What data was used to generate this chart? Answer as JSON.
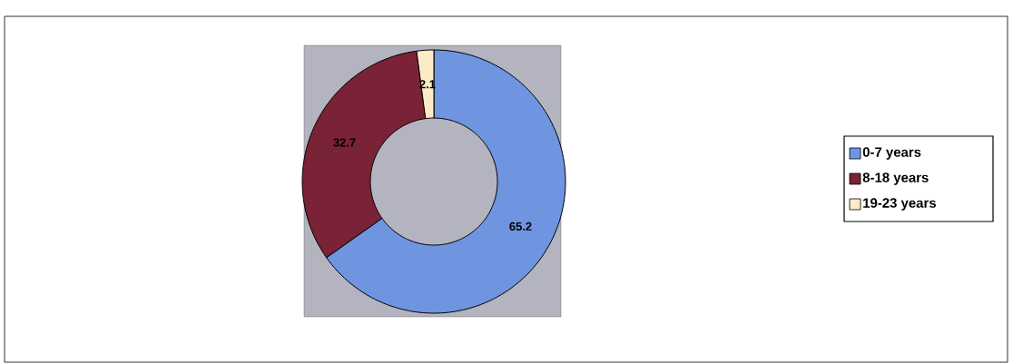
{
  "chart_data": {
    "type": "donut",
    "categories": [
      "0-7 years",
      "8-18 years",
      "19-23 years"
    ],
    "values": [
      65.2,
      32.7,
      2.1
    ],
    "colors": [
      "#6f94e0",
      "#7a2236",
      "#fdebc8"
    ],
    "data_labels": true,
    "legend": "right"
  }
}
